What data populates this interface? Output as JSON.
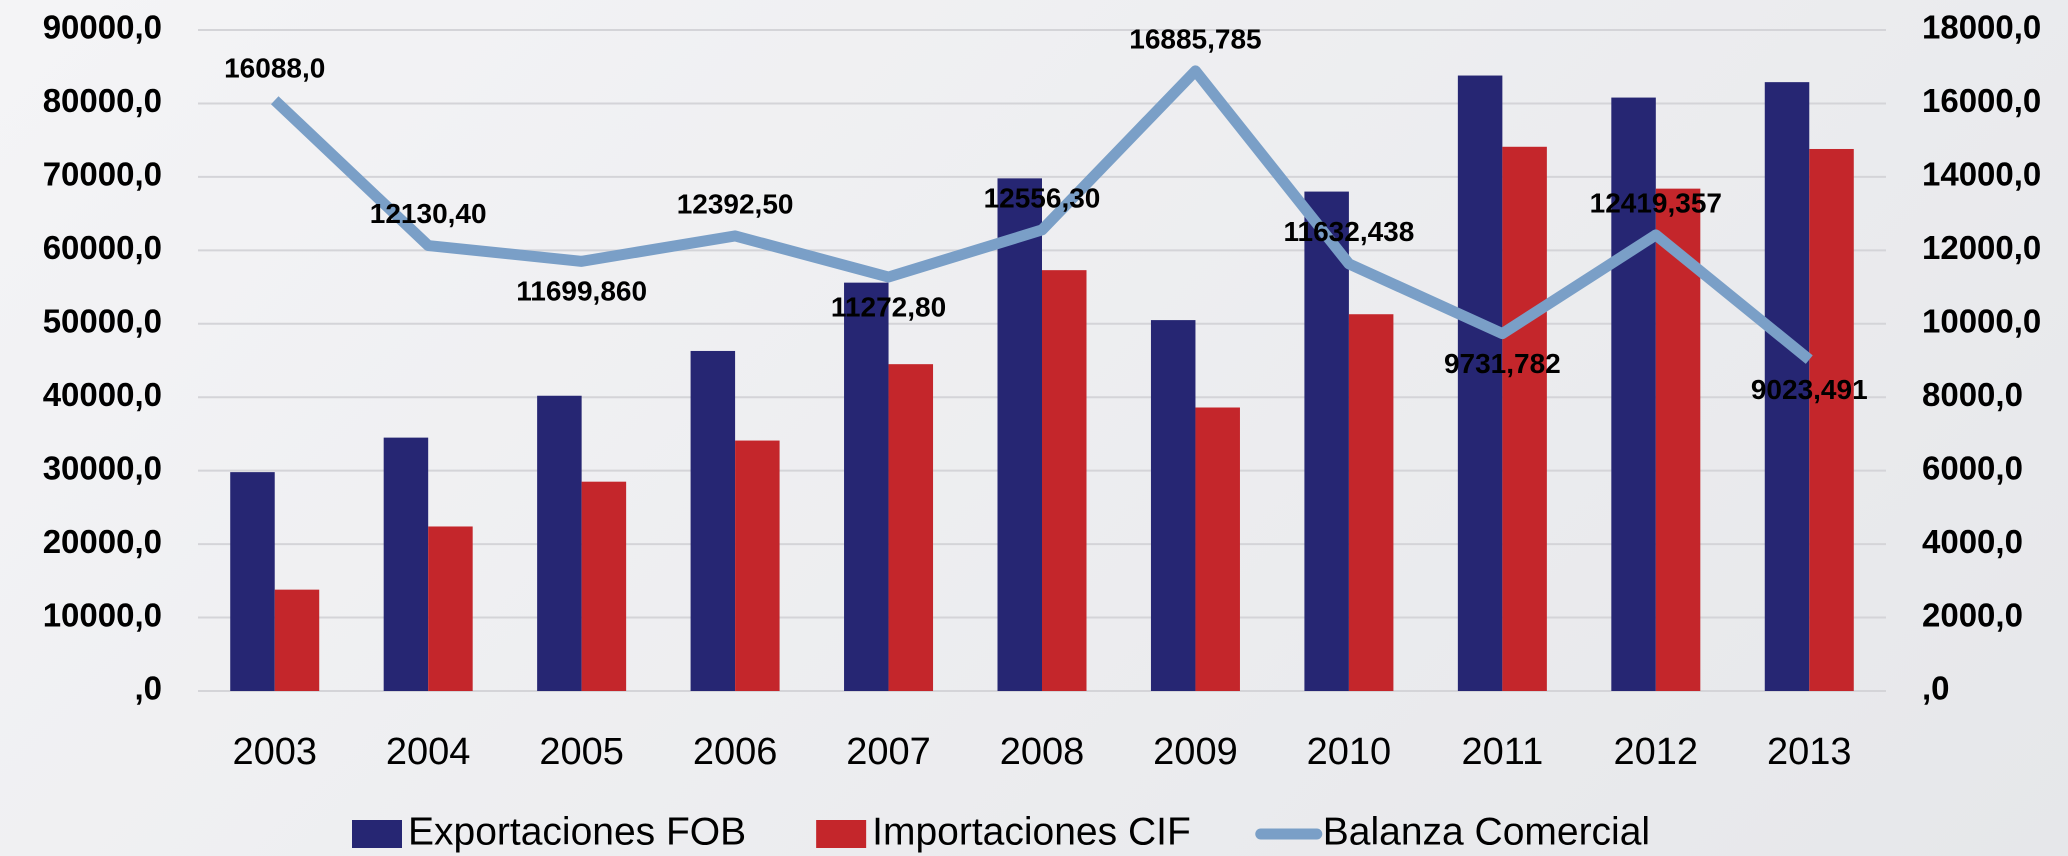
{
  "chart_data": {
    "type": "bar_line",
    "categories": [
      "2003",
      "2004",
      "2005",
      "2006",
      "2007",
      "2008",
      "2009",
      "2010",
      "2011",
      "2012",
      "2013"
    ],
    "series": [
      {
        "name": "Exportaciones FOB",
        "color": "#262673",
        "type": "bar",
        "values": [
          29800,
          34500,
          40200,
          46300,
          55600,
          69800,
          50500,
          68000,
          83800,
          80800,
          82900
        ]
      },
      {
        "name": "Importaciones CIF",
        "color": "#c4262b",
        "type": "bar",
        "values": [
          13800,
          22400,
          28500,
          34100,
          44500,
          57300,
          38600,
          51300,
          74100,
          68400,
          73800
        ]
      },
      {
        "name": "Balanza Comercial",
        "color": "#7a9fc7",
        "type": "line",
        "axis": "y2",
        "values": [
          16088.0,
          12130.4,
          11699.86,
          12392.5,
          11272.8,
          12556.3,
          16885.785,
          11632.438,
          9731.782,
          12419.357,
          9023.491
        ],
        "value_labels": [
          "16088,0",
          "12130,40",
          "11699,860",
          "12392,50",
          "11272,80",
          "12556,30",
          "16885,785",
          "11632,438",
          "9731,782",
          "12419,357",
          "9023,491"
        ]
      }
    ],
    "ylim": [
      0,
      90000
    ],
    "yticks": [
      {
        "value": 0,
        "label": ",0"
      },
      {
        "value": 10000,
        "label": "10000,0"
      },
      {
        "value": 20000,
        "label": "20000,0"
      },
      {
        "value": 30000,
        "label": "30000,0"
      },
      {
        "value": 40000,
        "label": "40000,0"
      },
      {
        "value": 50000,
        "label": "50000,0"
      },
      {
        "value": 60000,
        "label": "60000,0"
      },
      {
        "value": 70000,
        "label": "70000,0"
      },
      {
        "value": 80000,
        "label": "80000,0"
      },
      {
        "value": 90000,
        "label": "90000,0"
      }
    ],
    "y2lim": [
      0,
      18000
    ],
    "y2ticks": [
      {
        "value": 0,
        "label": ",0"
      },
      {
        "value": 2000,
        "label": "2000,0"
      },
      {
        "value": 4000,
        "label": "4000,0"
      },
      {
        "value": 6000,
        "label": "6000,0"
      },
      {
        "value": 8000,
        "label": "8000,0"
      },
      {
        "value": 10000,
        "label": "10000,0"
      },
      {
        "value": 12000,
        "label": "12000,0"
      },
      {
        "value": 14000,
        "label": "14000,0"
      },
      {
        "value": 16000,
        "label": "16000,0"
      },
      {
        "value": 18000,
        "label": "18000,0"
      }
    ],
    "grid": true,
    "legend": "bottom"
  }
}
